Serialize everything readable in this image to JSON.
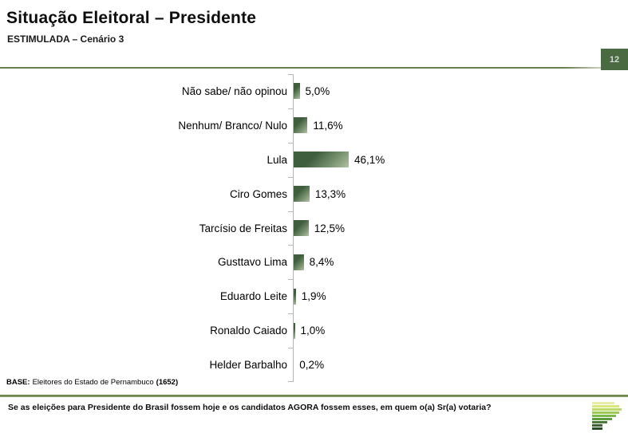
{
  "header": {
    "title": "Situação Eleitoral – Presidente",
    "subtitle": "ESTIMULADA – Cenário 3",
    "page_number": "12"
  },
  "chart_data": {
    "type": "bar",
    "orientation": "horizontal",
    "title": "Situação Eleitoral – Presidente",
    "subtitle": "ESTIMULADA – Cenário 3",
    "categories": [
      "Não sabe/ não opinou",
      "Nenhum/ Branco/ Nulo",
      "Lula",
      "Ciro Gomes",
      "Tarcísio de Freitas",
      "Gusttavo Lima",
      "Eduardo Leite",
      "Ronaldo Caiado",
      "Helder Barbalho"
    ],
    "values": [
      5.0,
      11.6,
      46.1,
      13.3,
      12.5,
      8.4,
      1.9,
      1.0,
      0.2
    ],
    "value_labels": [
      "5,0%",
      "11,6%",
      "46,1%",
      "13,3%",
      "12,5%",
      "8,4%",
      "1,9%",
      "1,0%",
      "0,2%"
    ],
    "unit": "%",
    "xlim": [
      0,
      100
    ],
    "grid": false,
    "legend": false,
    "bar_color_dark": "#3e5e3d",
    "bar_color_mid": "#7b9472",
    "bar_color_light": "#b2c2a6",
    "axis_color": "#b0b7b9"
  },
  "footer": {
    "base_label": "BASE:",
    "base_text": "Eleitores do Estado de Pernambuco",
    "base_count": "(1652)",
    "question": "Se as eleições para Presidente do Brasil fossem hoje e os candidatos AGORA fossem esses, em quem o(a) Sr(a) votaria?"
  },
  "logo": {
    "name": "institute-logo",
    "bars": [
      {
        "color": "#e7eda8",
        "width": 28
      },
      {
        "color": "#d8e77e",
        "width": 34
      },
      {
        "color": "#bdd968",
        "width": 37
      },
      {
        "color": "#9dcb55",
        "width": 34
      },
      {
        "color": "#7db84b",
        "width": 30
      },
      {
        "color": "#5e9c41",
        "width": 25
      },
      {
        "color": "#497c38",
        "width": 19
      },
      {
        "color": "#3a6331",
        "width": 13
      },
      {
        "color": "#2a4d29",
        "width": 13
      }
    ]
  },
  "colors": {
    "accent_green": "#4a6b42",
    "rule_top": "#6c7e53",
    "rule_bottom": "#8aa668"
  }
}
